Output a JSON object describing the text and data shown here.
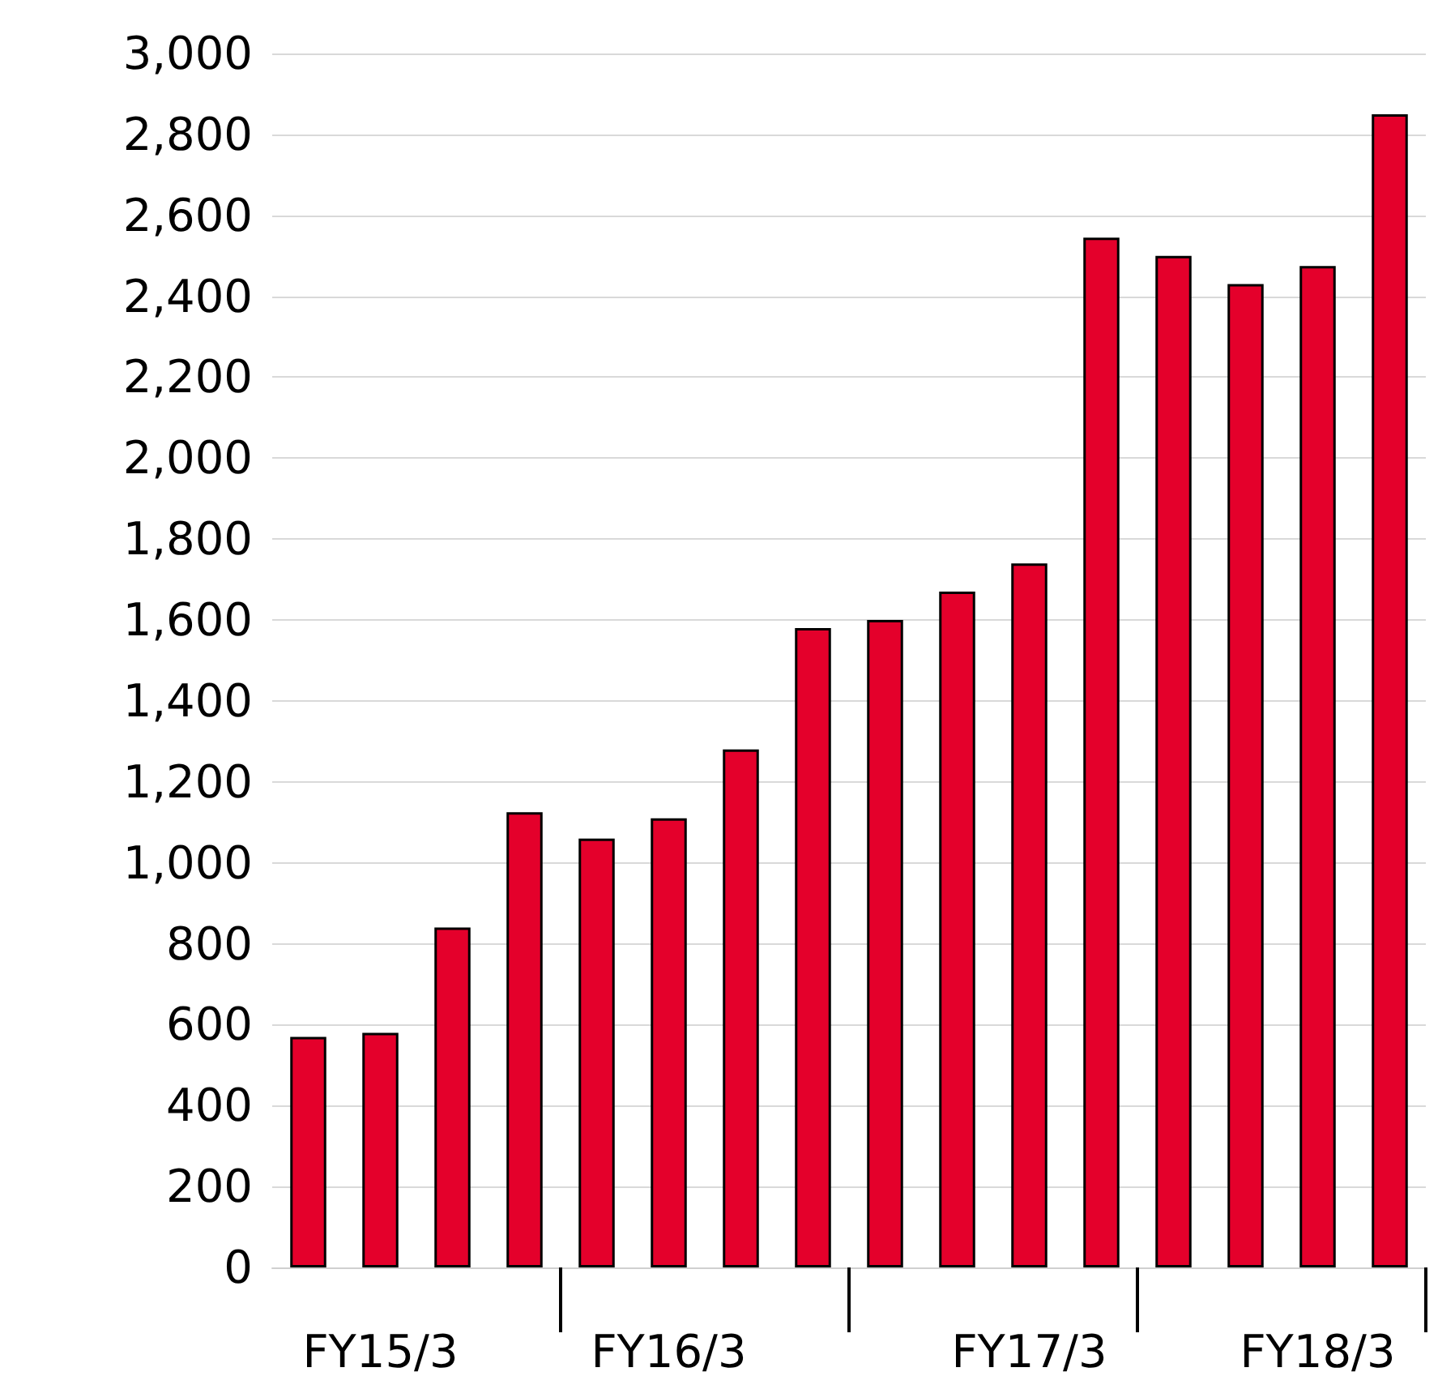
{
  "chart_data": {
    "type": "bar",
    "categories": [
      null,
      "FY15/3",
      null,
      null,
      null,
      "FY16/3",
      null,
      null,
      null,
      null,
      "FY17/3",
      null,
      null,
      null,
      "FY18/3",
      null
    ],
    "values": [
      570,
      580,
      840,
      1125,
      1060,
      1110,
      1280,
      1580,
      1600,
      1670,
      1740,
      2545,
      2500,
      2430,
      2475,
      2850
    ],
    "color": "#e4002b",
    "ylim": [
      0,
      3000
    ],
    "yticks": [
      0,
      200,
      400,
      600,
      800,
      {
        "value": 1000,
        "label": "1,000"
      },
      {
        "value": 1200,
        "label": "1,200"
      },
      {
        "value": 1400,
        "label": "1,400"
      },
      {
        "value": 1600,
        "label": "1,600"
      },
      {
        "value": 1800,
        "label": "1,800"
      },
      {
        "value": 2000,
        "label": "2,000"
      },
      {
        "value": 2200,
        "label": "2,200"
      },
      {
        "value": 2400,
        "label": "2,400"
      },
      {
        "value": 2600,
        "label": "2,600"
      },
      {
        "value": 2800,
        "label": "2,800"
      },
      {
        "value": 3000,
        "label": "3,000"
      }
    ],
    "grid": "y"
  }
}
